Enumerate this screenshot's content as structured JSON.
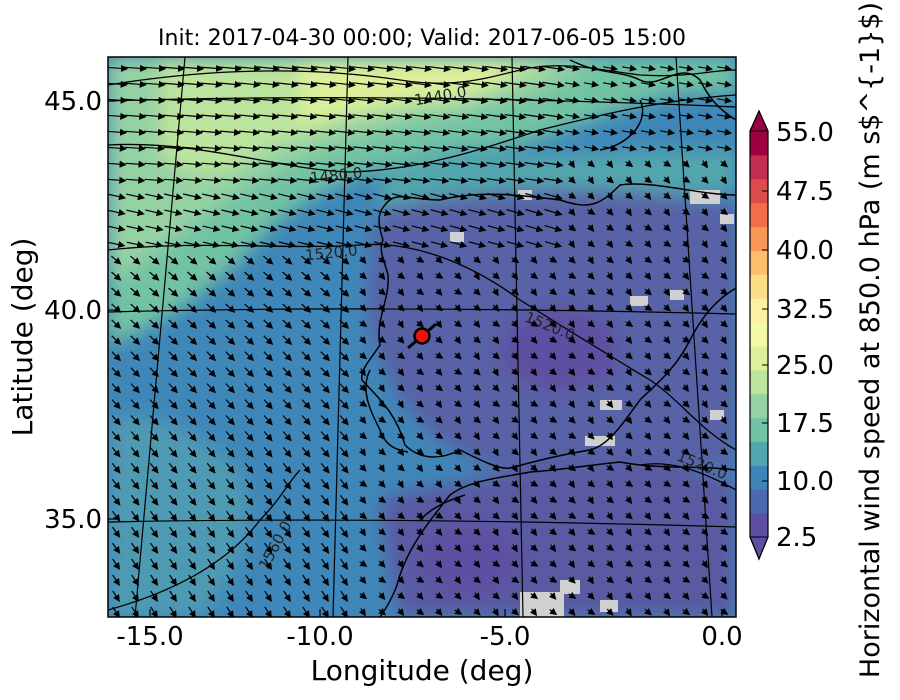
{
  "title": "Init: 2017-04-30 00:00; Valid: 2017-06-05 15:00",
  "axes": {
    "xlabel": "Longitude (deg)",
    "ylabel": "Latitude (deg)",
    "xticks": [
      "-15.0",
      "-10.0",
      "-5.0",
      "0.0"
    ],
    "yticks": [
      "45.0",
      "40.0",
      "35.0"
    ]
  },
  "colorbar": {
    "label": "Horizontal wind speed at 850.0 hPa (m s$^{-1}$)",
    "ticks": [
      "55.0",
      "47.5",
      "40.0",
      "32.5",
      "25.0",
      "17.5",
      "10.0",
      "2.5"
    ],
    "colors": [
      "#5e4fa2",
      "#4a69b0",
      "#3d84b8",
      "#52a6ad",
      "#72c2a4",
      "#95d2a3",
      "#bbe49e",
      "#dcf09b",
      "#f4f9a8",
      "#fdf0a2",
      "#fddc88",
      "#fdbd6d",
      "#f99756",
      "#f26d4a",
      "#dd4c4c",
      "#c32d4f",
      "#9e0142"
    ]
  },
  "contours": {
    "labels": [
      "1440.0",
      "1480.0",
      "1520.0",
      "1520.0",
      "1520.0",
      "1560.0"
    ],
    "color": "#000000"
  },
  "marker": {
    "fill": "#ee1111",
    "edge": "#000000"
  },
  "map": {
    "ocean_color": "#3f87b8",
    "land_color": "#5862a6",
    "jet_color": "#dff29f",
    "missing_color": "#d0d0d0"
  }
}
